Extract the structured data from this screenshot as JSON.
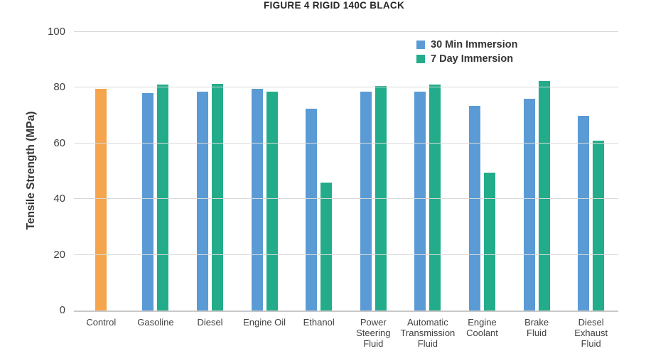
{
  "chart_data": {
    "type": "bar",
    "title": "FIGURE 4 RIGID 140C BLACK",
    "ylabel": "Tensile Strength (MPa)",
    "xlabel": "",
    "ylim": [
      0,
      100
    ],
    "yticks": [
      0,
      20,
      40,
      60,
      80,
      100
    ],
    "grid": true,
    "legend_position": "top-right-inside",
    "background_color": "#ffffff",
    "gridline_color": "#d9d9d9",
    "categories": [
      "Control",
      "Gasoline",
      "Diesel",
      "Engine Oil",
      "Ethanol",
      "Power\nSteering\nFluid",
      "Automatic\nTransmission\nFluid",
      "Engine\nCoolant",
      "Brake\nFluid",
      "Diesel\nExhaust\nFluid"
    ],
    "series": [
      {
        "name": "Control",
        "color": "#F5A54E",
        "in_legend": false,
        "values": [
          79.5,
          null,
          null,
          null,
          null,
          null,
          null,
          null,
          null,
          null
        ]
      },
      {
        "name": "30 Min Immersion",
        "color": "#5B9BD5",
        "in_legend": true,
        "values": [
          null,
          78,
          78.5,
          79.5,
          72.5,
          78.5,
          78.5,
          73.5,
          76,
          70
        ]
      },
      {
        "name": "7 Day Immersion",
        "color": "#23AC8A",
        "in_legend": true,
        "values": [
          null,
          81,
          81.5,
          78.5,
          46,
          80.5,
          81,
          49.5,
          82.5,
          61
        ]
      }
    ]
  }
}
